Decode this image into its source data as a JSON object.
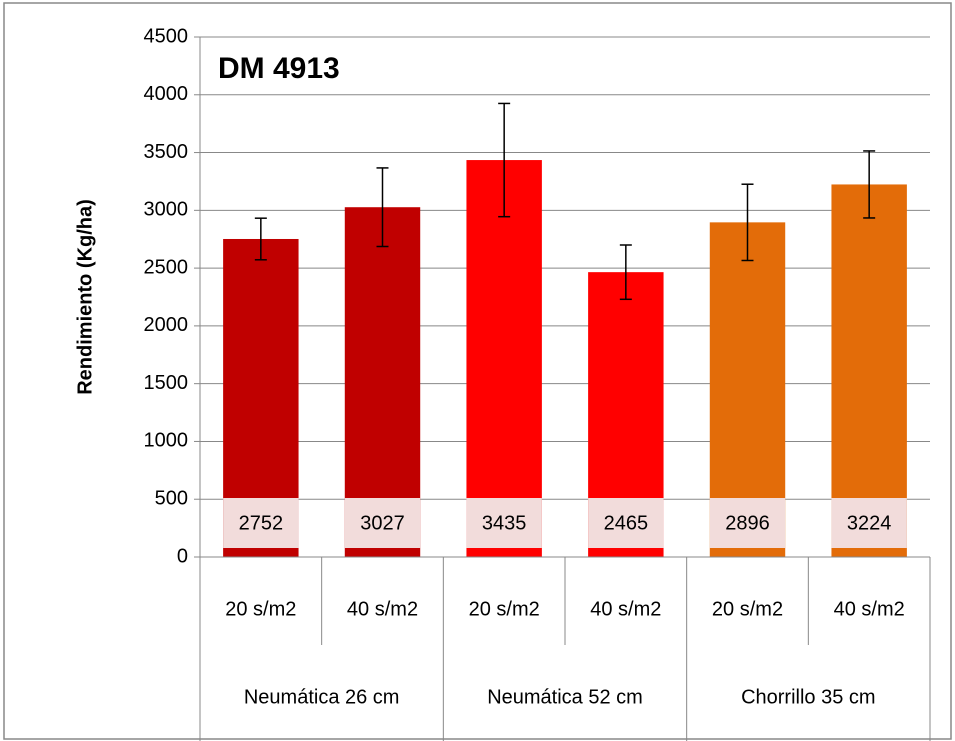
{
  "chart_data": {
    "type": "bar",
    "title": "DM 4913",
    "y_label": "Rendimiento (Kg/ha)",
    "categories": [
      "20 s/m2",
      "40 s/m2",
      "20 s/m2",
      "40 s/m2",
      "20 s/m2",
      "40 s/m2"
    ],
    "category_groups": [
      "Neumática 26 cm",
      "Neumática 52 cm",
      "Chorrillo 35 cm"
    ],
    "values": [
      2752,
      3027,
      3435,
      2465,
      2896,
      3224
    ],
    "errors": [
      180,
      340,
      490,
      235,
      330,
      290
    ],
    "colors": [
      "#c00000",
      "#c00000",
      "#ff0000",
      "#ff0000",
      "#e36c09",
      "#e36c09"
    ],
    "ylim": [
      0,
      4500
    ],
    "yticks": [
      0,
      500,
      1000,
      1500,
      2000,
      2500,
      3000,
      3500,
      4000,
      4500
    ],
    "grid": true
  }
}
